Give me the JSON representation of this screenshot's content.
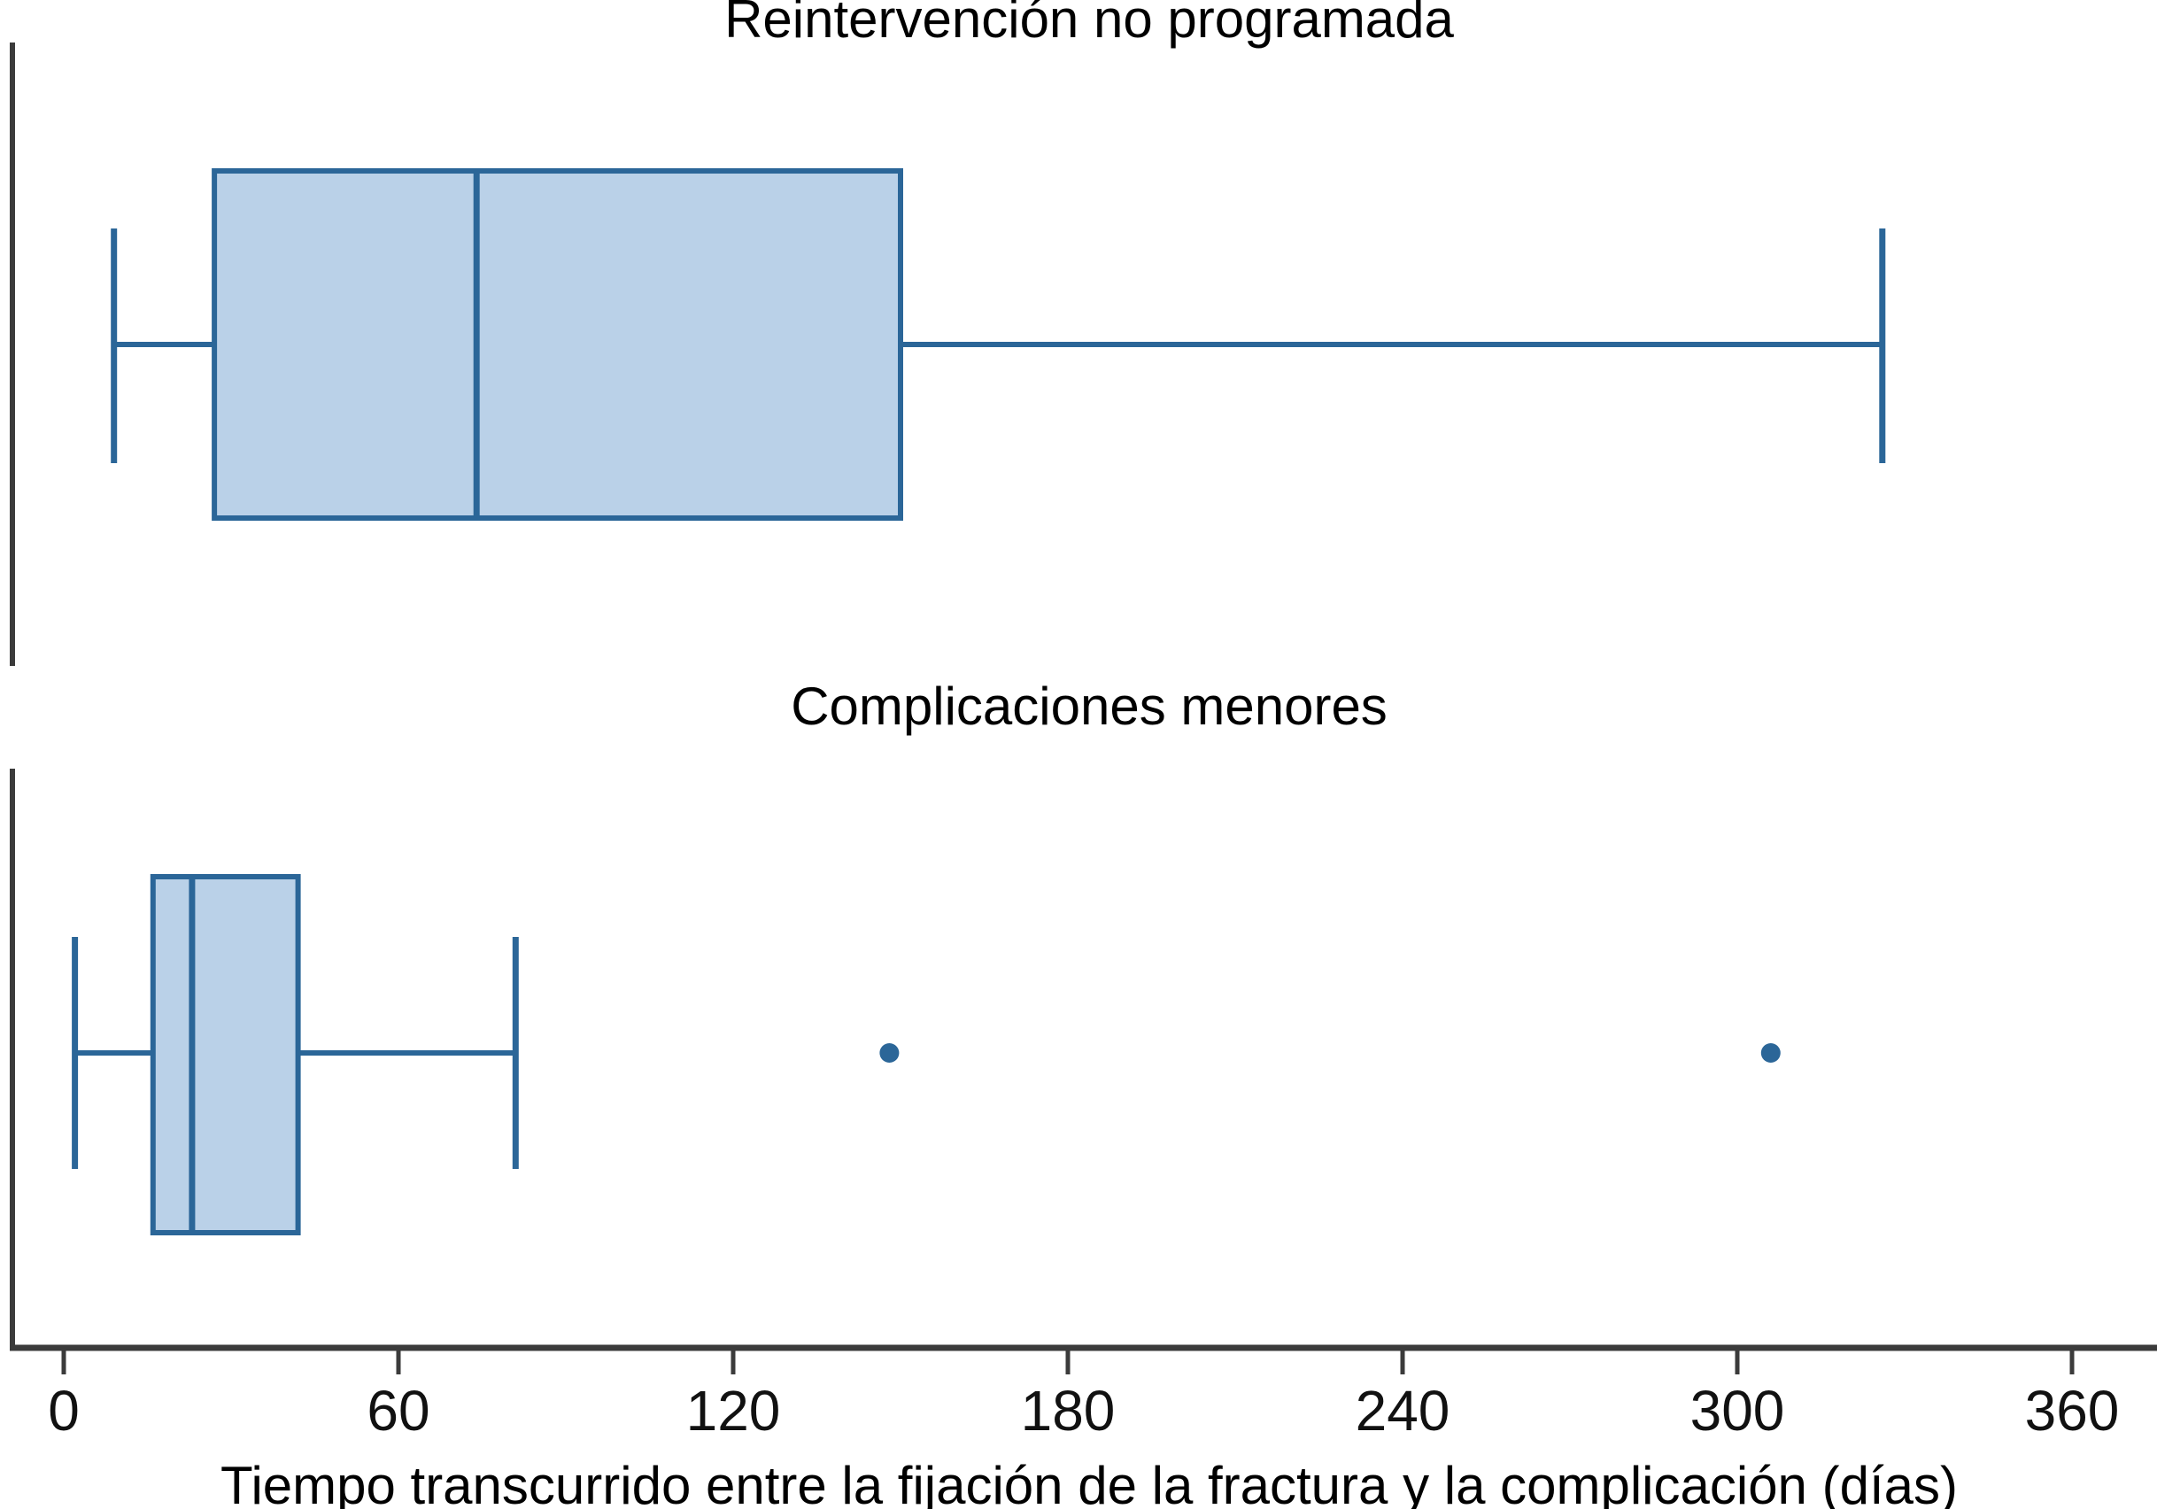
{
  "figure": {
    "background_color": "#ffffff"
  },
  "chart_data": {
    "type": "boxplot",
    "orientation": "horizontal",
    "title": "",
    "xlabel": "Tiempo transcurrido entre la fijación de la fractura y la complicación (días)",
    "ylabel": "",
    "x_ticks": [
      0,
      60,
      120,
      180,
      240,
      300,
      360
    ],
    "xlim": [
      0,
      375
    ],
    "grid": false,
    "legend": "none",
    "panels": [
      {
        "title": "Reintervención no programada",
        "whisker_low": 9,
        "q1": 27,
        "median": 74,
        "q3": 150,
        "whisker_high": 326,
        "outliers": []
      },
      {
        "title": "Complicaciones menores",
        "whisker_low": 2,
        "q1": 16,
        "median": 23,
        "q3": 42,
        "whisker_high": 81,
        "outliers": [
          148,
          306
        ]
      }
    ],
    "colors": {
      "box_fill": "#bad1e8",
      "box_stroke": "#2b6698",
      "median_stroke": "#2b6698",
      "whisker_stroke": "#2b6698",
      "outlier_fill": "#2b6698",
      "axis_line": "#3b3b3b",
      "text": "#000000"
    }
  }
}
